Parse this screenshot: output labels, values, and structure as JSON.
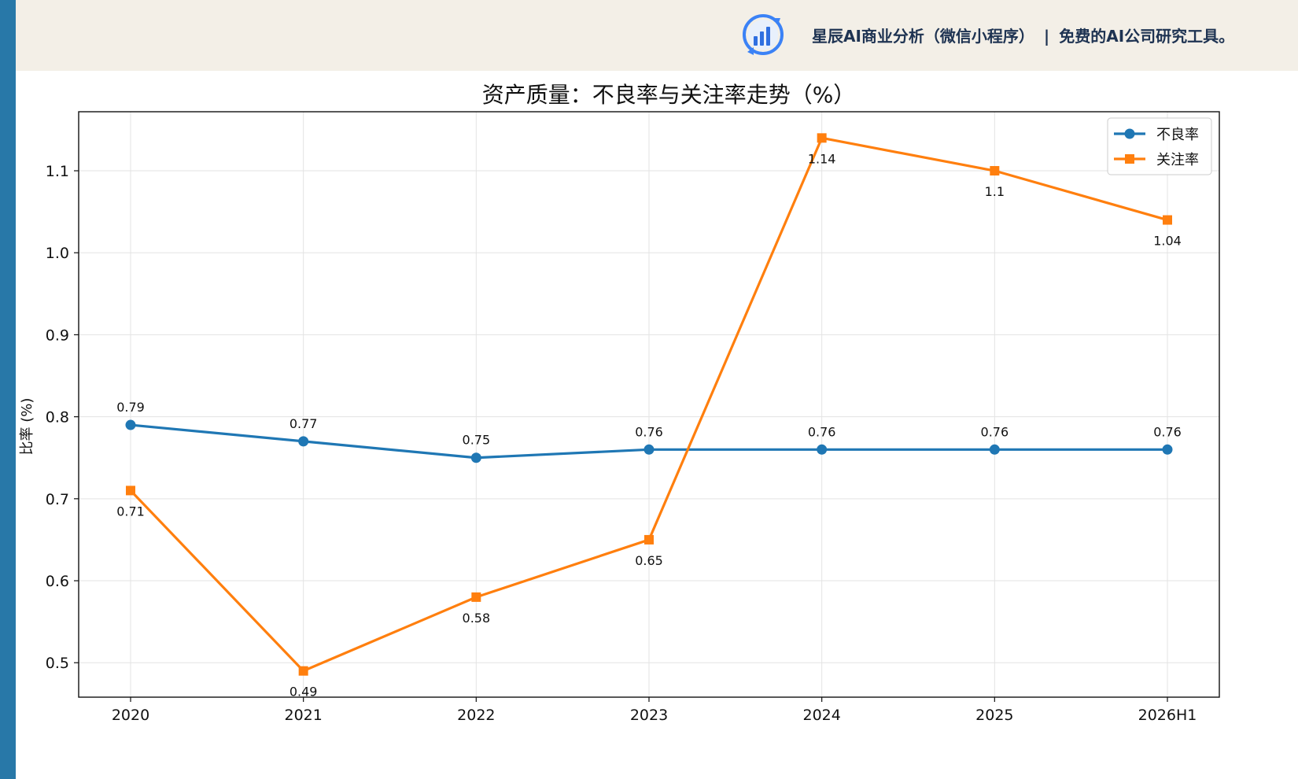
{
  "banner": {
    "app_name": "星辰AI商业分析（微信小程序）",
    "separator": "|",
    "tagline": "免费的AI公司研究工具。",
    "logo_icon": "bar-chart-refresh-icon",
    "accent_color": "#2878a8",
    "background_color": "#f3efe7"
  },
  "chart_data": {
    "type": "line",
    "title": "资产质量：不良率与关注率走势（%）",
    "xlabel": "",
    "ylabel": "比率 (%)",
    "categories": [
      "2020",
      "2021",
      "2022",
      "2023",
      "2024",
      "2025",
      "2026H1"
    ],
    "ylim": [
      0.458,
      1.172
    ],
    "yticks": [
      0.5,
      0.6,
      0.7,
      0.8,
      0.9,
      1.0,
      1.1
    ],
    "ytick_labels": [
      "0.5",
      "0.6",
      "0.7",
      "0.8",
      "0.9",
      "1.0",
      "1.1"
    ],
    "grid": true,
    "legend_position": "top-right",
    "series": [
      {
        "name": "不良率",
        "color": "#1f77b4",
        "marker": "circle",
        "values": [
          0.79,
          0.77,
          0.75,
          0.76,
          0.76,
          0.76,
          0.76
        ],
        "labels": [
          "0.79",
          "0.77",
          "0.75",
          "0.76",
          "0.76",
          "0.76",
          "0.76"
        ],
        "label_position": "above"
      },
      {
        "name": "关注率",
        "color": "#ff7f0e",
        "marker": "square",
        "values": [
          0.71,
          0.49,
          0.58,
          0.65,
          1.14,
          1.1,
          1.04
        ],
        "labels": [
          "0.71",
          "0.49",
          "0.58",
          "0.65",
          "1.14",
          "1.1",
          "1.04"
        ],
        "label_position": "below"
      }
    ]
  }
}
